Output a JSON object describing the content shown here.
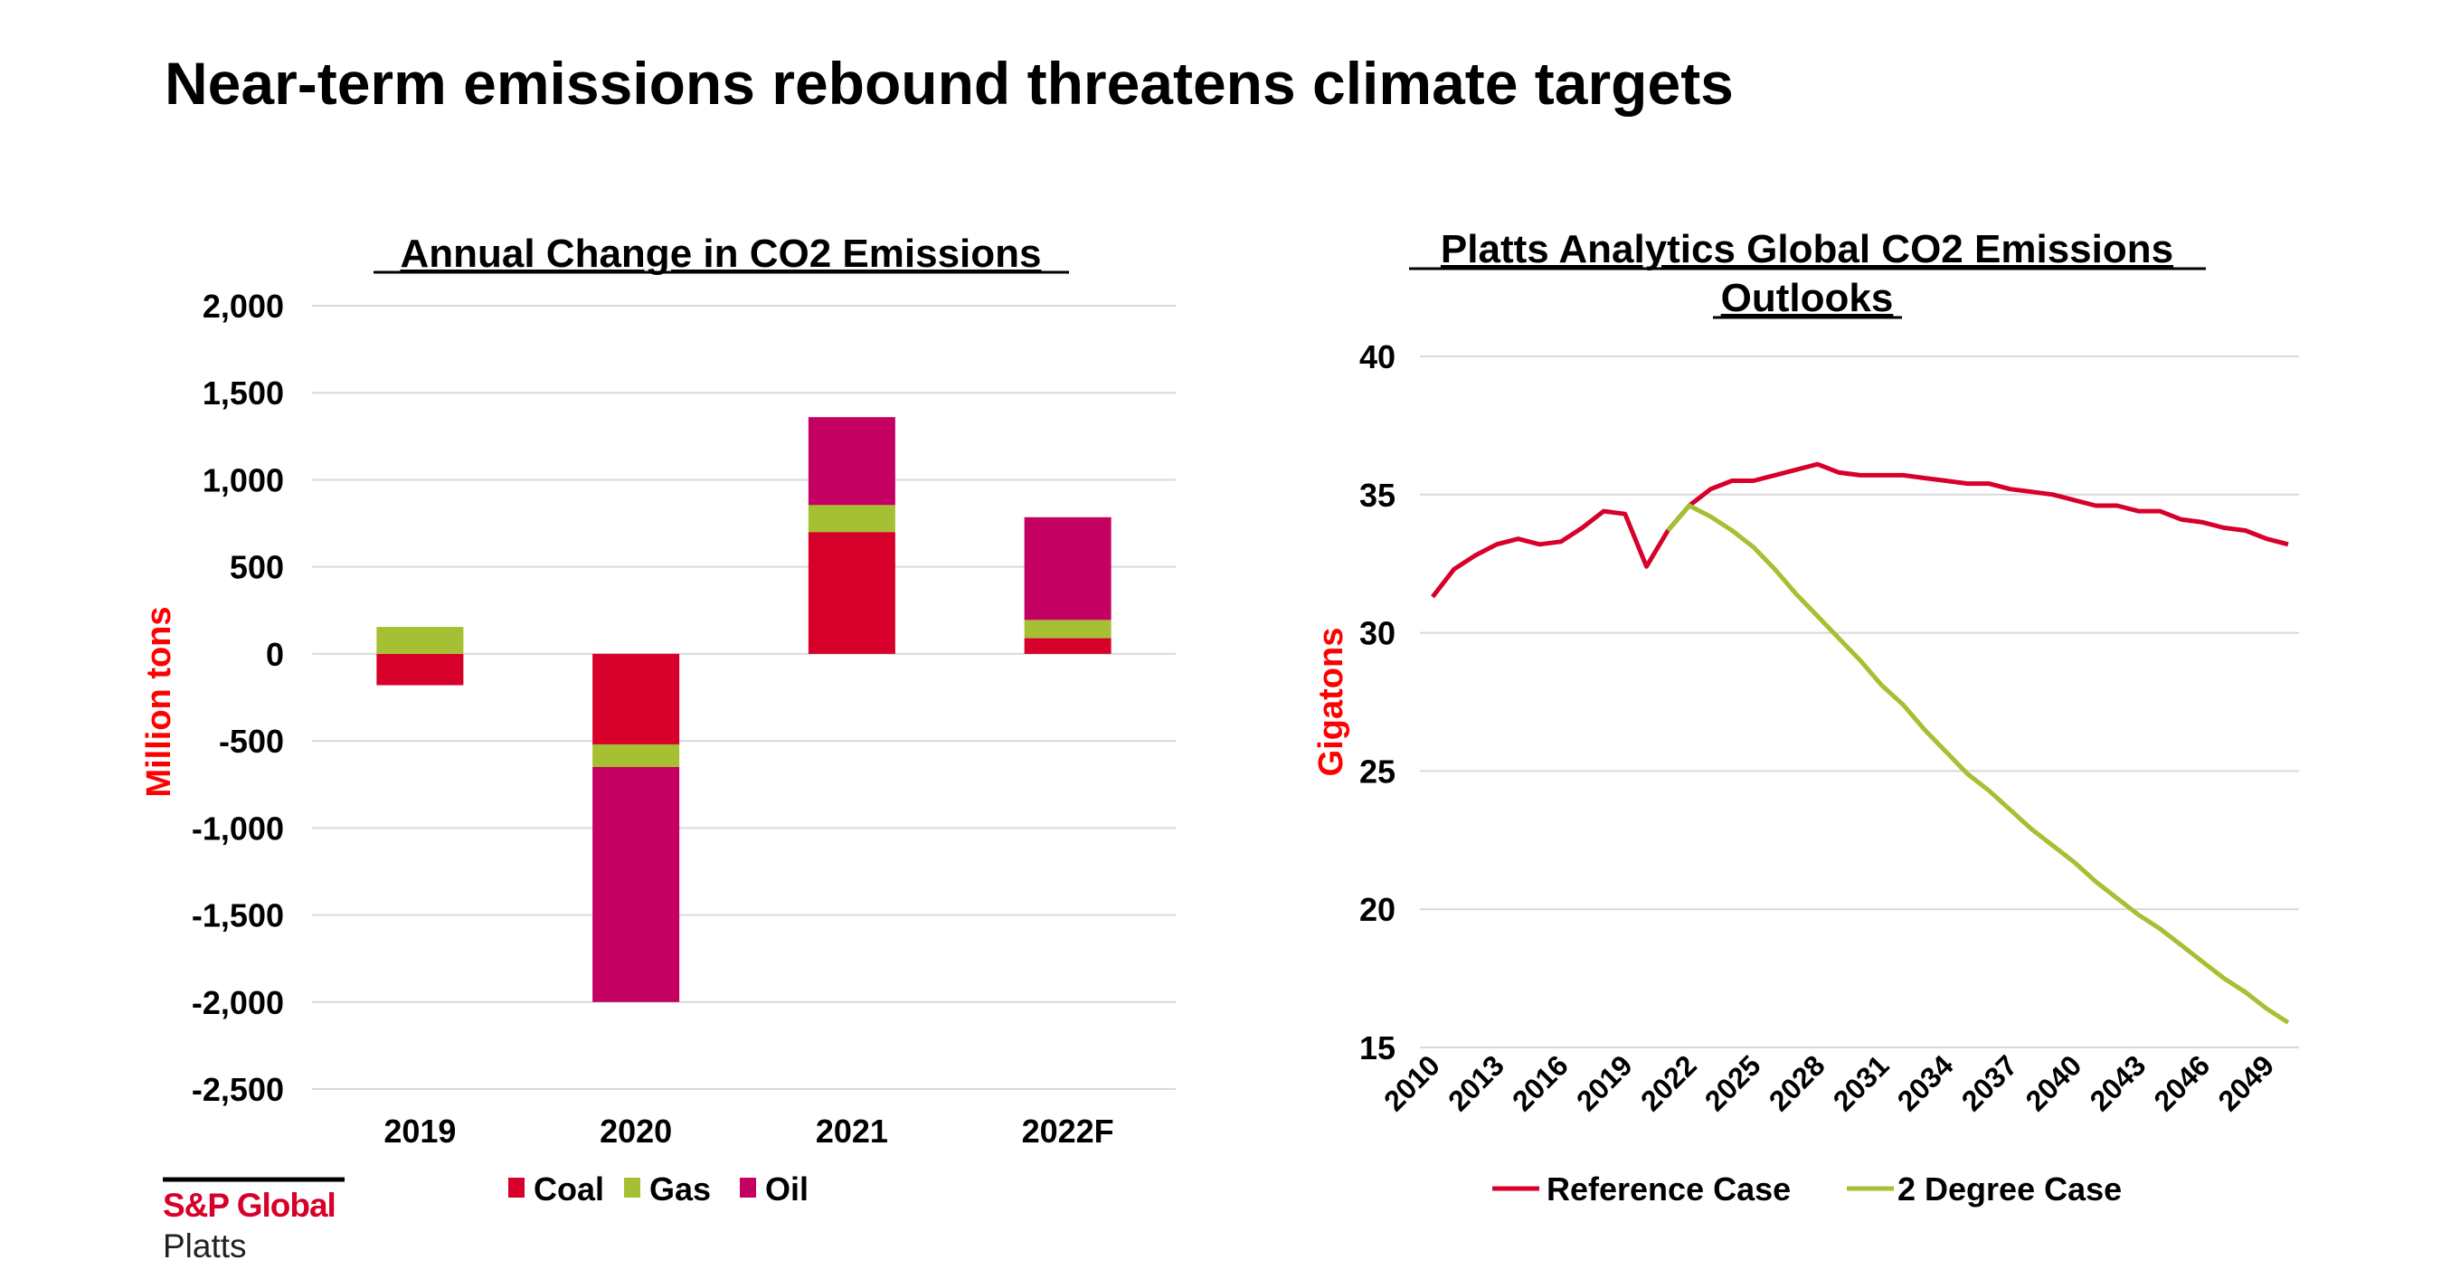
{
  "page_title": "Near-term emissions rebound threatens climate targets",
  "logo": {
    "brand": "S&P Global",
    "sub": "Platts"
  },
  "colors": {
    "coal": "#d7002a",
    "gas": "#a5c033",
    "oil": "#c40062",
    "reference": "#d7002a",
    "two_degree": "#a5c033",
    "axis_label": "#ff0000",
    "grid": "#d9d9d9"
  },
  "chart_data": [
    {
      "type": "bar",
      "stacked": true,
      "title": "Annual Change in CO2 Emissions",
      "ylabel": "Million  tons",
      "xlabel": "",
      "ylim": [
        -2500,
        2000
      ],
      "yticks": [
        2000,
        1500,
        1000,
        500,
        0,
        -500,
        -1000,
        -1500,
        -2000,
        -2500
      ],
      "ytick_labels": [
        "2,000",
        "1,500",
        "1,000",
        "500",
        "0",
        "-500",
        "-1,000",
        "-1,500",
        "-2,000",
        "-2,500"
      ],
      "grid": true,
      "legend_position": "bottom",
      "categories": [
        "2019",
        "2020",
        "2021",
        "2022F"
      ],
      "series": [
        {
          "name": "Coal",
          "values": [
            -180,
            -520,
            700,
            90
          ]
        },
        {
          "name": "Gas",
          "values": [
            155,
            -130,
            155,
            105
          ]
        },
        {
          "name": "Oil",
          "values": [
            0,
            -1350,
            505,
            590
          ]
        }
      ]
    },
    {
      "type": "line",
      "title": "Platts Analytics Global CO2 Emissions Outlooks",
      "title_lines": [
        "Platts Analytics Global CO2 Emissions",
        "Outlooks"
      ],
      "ylabel": "Gigatons",
      "xlabel": "",
      "ylim": [
        15,
        40
      ],
      "yticks": [
        40,
        35,
        30,
        25,
        20,
        15
      ],
      "xlim": [
        2010,
        2050
      ],
      "xtick_labels": [
        "2010",
        "2013",
        "2016",
        "2019",
        "2022",
        "2025",
        "2028",
        "2031",
        "2034",
        "2037",
        "2040",
        "2043",
        "2046",
        "2049"
      ],
      "grid": true,
      "legend_position": "bottom",
      "series": [
        {
          "name": "Reference Case",
          "x_start": 2010,
          "values": [
            31.3,
            32.3,
            32.8,
            33.2,
            33.4,
            33.2,
            33.3,
            33.8,
            34.4,
            34.3,
            32.4,
            33.7,
            34.6,
            35.2,
            35.5,
            35.5,
            35.7,
            35.9,
            36.1,
            35.8,
            35.7,
            35.7,
            35.7,
            35.6,
            35.5,
            35.4,
            35.4,
            35.2,
            35.1,
            35.0,
            34.8,
            34.6,
            34.6,
            34.4,
            34.4,
            34.1,
            34.0,
            33.8,
            33.7,
            33.4,
            33.2
          ]
        },
        {
          "name": "2 Degree Case",
          "x_start": 2021,
          "values": [
            33.7,
            34.6,
            34.2,
            33.7,
            33.1,
            32.3,
            31.4,
            30.6,
            29.8,
            29.0,
            28.1,
            27.4,
            26.5,
            25.7,
            24.9,
            24.3,
            23.6,
            22.9,
            22.3,
            21.7,
            21.0,
            20.4,
            19.8,
            19.3,
            18.7,
            18.1,
            17.5,
            17.0,
            16.4,
            15.9
          ]
        }
      ]
    }
  ]
}
